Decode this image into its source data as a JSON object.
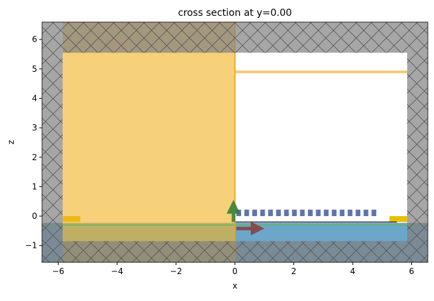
{
  "chart_data": {
    "type": "cross-section",
    "title": "cross section at y=0.00",
    "xlabel": "x",
    "ylabel": "z",
    "xlim": [
      -6.55,
      6.55
    ],
    "ylim": [
      -1.57,
      6.59
    ],
    "xticks": [
      {
        "value": -6,
        "label": "−6"
      },
      {
        "value": -4,
        "label": "−4"
      },
      {
        "value": -2,
        "label": "−2"
      },
      0,
      2,
      4,
      6
    ],
    "yticks": [
      {
        "value": -1,
        "label": "−1"
      },
      0,
      1,
      2,
      3,
      4,
      5,
      6
    ],
    "rects": [
      {
        "x": [
          -6.55,
          6.55
        ],
        "z": [
          -1.57,
          -0.23
        ],
        "color": "#6ca6c9",
        "opacity": 1
      },
      {
        "x": [
          -5.85,
          -5.25
        ],
        "z": [
          -0.2,
          0
        ],
        "color": "#e8c000",
        "opacity": 1
      },
      {
        "x": [
          5.25,
          5.85
        ],
        "z": [
          -0.2,
          0
        ],
        "color": "#e8c000",
        "opacity": 1
      },
      {
        "x": [
          -5.85,
          0
        ],
        "z": [
          -1.57,
          6.59
        ],
        "color": "#f0b429",
        "opacity": 0.62
      },
      {
        "x": [
          -6.55,
          -5.85
        ],
        "z": [
          -1.57,
          6.59
        ],
        "color": "#808080",
        "opacity": 0.7,
        "hatch": true
      },
      {
        "x": [
          5.85,
          6.55
        ],
        "z": [
          -1.57,
          6.59
        ],
        "color": "#808080",
        "opacity": 0.7,
        "hatch": true
      },
      {
        "x": [
          -5.85,
          5.85
        ],
        "z": [
          5.55,
          6.59
        ],
        "color": "#808080",
        "opacity": 0.7,
        "hatch": true
      },
      {
        "x": [
          -5.85,
          5.85
        ],
        "z": [
          -1.57,
          -0.85
        ],
        "color": "#808080",
        "opacity": 0.7,
        "hatch": true
      }
    ],
    "grating": {
      "x": [
        0.05,
        0.32,
        0.59,
        0.86,
        1.13,
        1.4,
        1.67,
        1.94,
        2.21,
        2.48,
        2.75,
        3.02,
        3.29,
        3.56,
        3.83,
        4.1,
        4.37,
        4.64
      ],
      "width": 0.16,
      "z": [
        0,
        0.22
      ],
      "color": "#6272b0"
    },
    "lines": [
      {
        "x": [
          0,
          5.85
        ],
        "z": [
          4.9,
          4.9
        ],
        "color": "#f5c060",
        "width": 4
      },
      {
        "x": [
          0,
          5.5
        ],
        "z": [
          -0.2,
          -0.2
        ],
        "color": "#111111",
        "width": 1.5
      },
      {
        "x": [
          -6.55,
          6.55
        ],
        "z": [
          -0.3,
          -0.3
        ],
        "color": "#5cb85c",
        "width": 1.5
      },
      {
        "x": [
          0,
          0
        ],
        "z": [
          -1.57,
          6.59
        ],
        "color": "#f0a020",
        "width": 2
      }
    ],
    "arrows": [
      {
        "x": [
          0.05,
          0.65
        ],
        "z": [
          -0.42,
          -0.42
        ],
        "color": "#8b3a3a"
      },
      {
        "x": [
          -0.05,
          -0.05
        ],
        "z": [
          -0.2,
          0.2
        ],
        "color": "#2e7d32"
      }
    ]
  }
}
